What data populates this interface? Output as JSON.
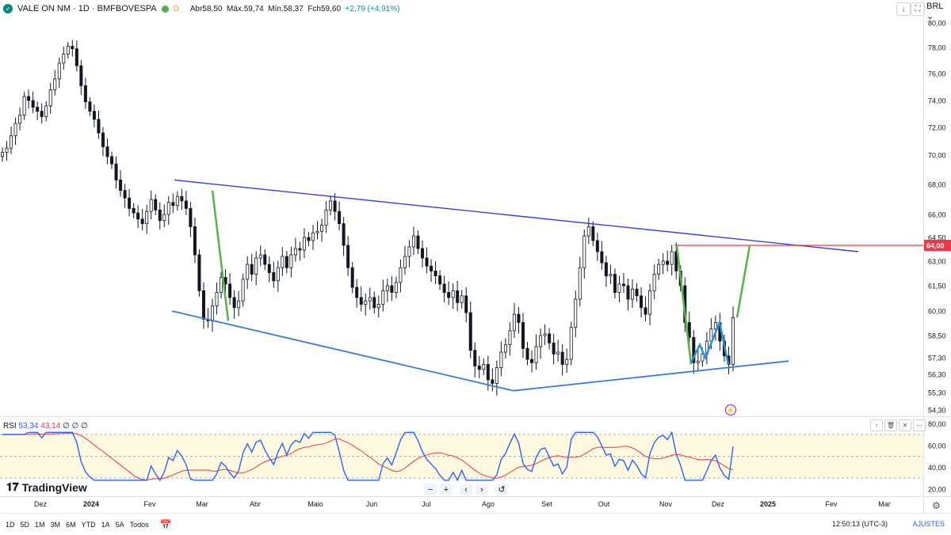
{
  "header": {
    "symbol": "VALE ON NM · 1D · BMFBOVESPA",
    "open_label": "Abr",
    "open_value": "58,50",
    "high_label": "Máx.",
    "high_value": "59,74",
    "low_label": "Mín.",
    "low_value": "58,37",
    "close_label": "Fch",
    "close_value": "59,60",
    "change": "+2,79 (+4,91%)",
    "badge_letter": "D",
    "currency": "BRL"
  },
  "colors": {
    "up": "#089981",
    "candle": "#131722",
    "trendline": "#3a3fd4",
    "support": "#3a7bd5",
    "green_path": "#58b34a",
    "level": "#f23645",
    "rsi": "#2962ff",
    "rsi_ma": "#f23645",
    "rsi_band": "#fff9e0"
  },
  "chart_data": {
    "type": "candlestick",
    "y_axis": {
      "ticks": [
        "80,00",
        "78,00",
        "76,00",
        "74,00",
        "72,00",
        "70,00",
        "68,00",
        "66,00",
        "64,50",
        "63,00",
        "61,50",
        "60,00",
        "58,50",
        "57,30",
        "56,30",
        "55,30",
        "54,30"
      ],
      "tick_values": [
        80,
        78,
        76,
        74,
        72,
        70,
        68,
        66,
        64.5,
        63,
        61.5,
        60,
        58.5,
        57.3,
        56.3,
        55.3,
        54.3
      ],
      "price_tag": "64,00",
      "price_tag_value": 64
    },
    "x_axis": {
      "ticks": [
        "Dez",
        "2024",
        "Fev",
        "Mar",
        "Abr",
        "Maio",
        "Jun",
        "Jul",
        "Ago",
        "Set",
        "Out",
        "Nov",
        "Dez",
        "2025",
        "Fev",
        "Mar"
      ]
    },
    "close_series": [
      70.2,
      70.5,
      71.4,
      72.3,
      72.9,
      74.3,
      74.0,
      73.5,
      73.2,
      72.8,
      73.6,
      74.8,
      75.6,
      76.8,
      77.5,
      78.1,
      77.9,
      76.6,
      75.1,
      73.9,
      73.2,
      72.6,
      71.6,
      70.6,
      69.9,
      69.4,
      68.3,
      67.6,
      67.1,
      66.4,
      66.1,
      65.7,
      65.4,
      66.2,
      67.0,
      66.3,
      65.6,
      66.0,
      66.8,
      66.6,
      67.2,
      66.9,
      66.4,
      65.2,
      63.4,
      61.2,
      59.5,
      59.4,
      60.3,
      61.1,
      62.0,
      61.6,
      60.8,
      60.2,
      60.6,
      61.9,
      62.8,
      62.2,
      63.2,
      63.4,
      62.8,
      62.3,
      61.8,
      62.6,
      63.3,
      62.6,
      63.4,
      63.8,
      63.7,
      64.5,
      64.3,
      64.8,
      64.9,
      65.3,
      66.3,
      66.9,
      66.2,
      65.4,
      64.0,
      62.6,
      61.4,
      60.8,
      60.4,
      60.6,
      60.8,
      60.2,
      60.4,
      61.2,
      61.5,
      61.1,
      61.7,
      62.6,
      63.3,
      63.9,
      64.6,
      63.8,
      63.2,
      62.7,
      62.4,
      62.1,
      61.6,
      61.1,
      60.8,
      61.2,
      60.5,
      60.9,
      59.9,
      57.7,
      56.8,
      56.6,
      56.9,
      56.0,
      55.8,
      56.7,
      57.6,
      58.0,
      58.8,
      59.8,
      59.3,
      57.8,
      57.2,
      57.0,
      57.9,
      58.5,
      58.6,
      58.1,
      57.5,
      57.6,
      56.9,
      57.2,
      59.0,
      60.7,
      62.6,
      64.6,
      65.2,
      64.3,
      63.6,
      62.9,
      62.1,
      62.2,
      61.1,
      61.6,
      61.5,
      60.7,
      61.3,
      60.9,
      60.2,
      59.8,
      61.2,
      62.2,
      62.8,
      63.0,
      62.8,
      63.6,
      62.4,
      61.5,
      59.3,
      58.4,
      57.0,
      57.1,
      57.5,
      58.2,
      58.9,
      59.3,
      58.2,
      57.4,
      56.9,
      59.6
    ],
    "trend_lines": [
      {
        "from": [
          "2024-02-20",
          68.3
        ],
        "to": [
          "2025-02-20",
          63.6
        ]
      },
      {
        "from": [
          "2024-02-01",
          60.0
        ],
        "to": [
          "2024-08-12",
          55.4
        ]
      },
      {
        "from": [
          "2024-08-12",
          55.4
        ],
        "to": [
          "2024-12-30",
          57.1
        ]
      },
      {
        "level": 64.0,
        "from": "2024-11-06",
        "to": "2025-03-01"
      }
    ],
    "rsi": {
      "label": "RSI",
      "value": "53,34",
      "ma_value": "43,14",
      "extra": "∅ ∅ ∅",
      "ticks": [
        "80,00",
        "60,00",
        "40,00",
        "20,00"
      ],
      "tick_values": [
        80,
        60,
        40,
        20
      ],
      "bands": [
        70,
        50,
        30
      ]
    }
  },
  "controls": {
    "zoom_out": "−",
    "zoom_in": "+",
    "prev": "‹",
    "next": "›",
    "reset": "↺"
  },
  "footer": {
    "brand": "TradingView",
    "ranges": [
      "1D",
      "5D",
      "1M",
      "3M",
      "6M",
      "YTD",
      "1A",
      "5A",
      "Todos"
    ],
    "clock": "12:50:13 (UTC-3)",
    "settings": "AJUSTES"
  }
}
